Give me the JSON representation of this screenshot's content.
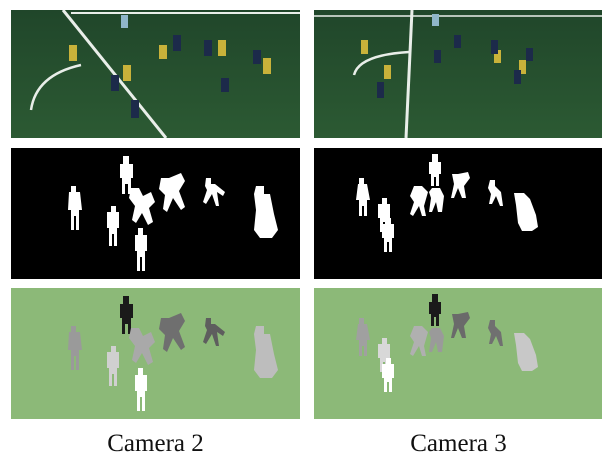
{
  "captions": {
    "camera2": "Camera 2",
    "camera3": "Camera 3"
  },
  "colors": {
    "pitch_dark": "#24502e",
    "pitch_light": "#3e6b42",
    "pitch_line": "#e9eee9",
    "mask_bg": "#000000",
    "mask_fg": "#ffffff",
    "depth_bg": "#8cb978"
  },
  "panels": [
    "camera-2-photo",
    "camera-3-photo",
    "camera-2-mask",
    "camera-3-mask",
    "camera-2-depth",
    "camera-3-depth"
  ]
}
